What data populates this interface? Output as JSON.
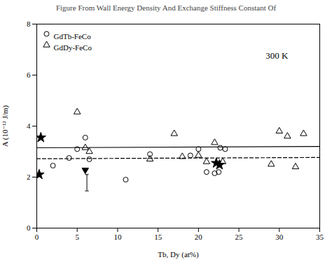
{
  "chart_data": {
    "type": "scatter",
    "title": "Figure From Wall Energy Density And Exchange Stiffness Constant Of",
    "xlabel": "Tb, Dy (at%)",
    "ylabel": "A (10⁻¹² J/m)",
    "xlim": [
      0,
      35
    ],
    "ylim": [
      0,
      8
    ],
    "xticks": [
      0,
      5,
      10,
      15,
      20,
      25,
      30,
      35
    ],
    "yticks": [
      0,
      2,
      4,
      6,
      8
    ],
    "annotation": "300 K",
    "legend": "upper left",
    "grid": false,
    "series": [
      {
        "name": "GdTb-FeCo",
        "type": "scatter",
        "marker": "circle-open",
        "color": "#000000",
        "x": [
          2,
          4,
          5,
          6,
          6.5,
          11,
          14,
          19,
          20,
          21,
          22,
          22.5,
          22.7,
          23.3
        ],
        "values": [
          2.45,
          2.75,
          3.1,
          3.55,
          2.7,
          1.9,
          2.9,
          2.85,
          3.1,
          2.2,
          2.15,
          2.2,
          3.15,
          3.1
        ]
      },
      {
        "name": "GdDy-FeCo",
        "type": "scatter",
        "marker": "triangle-open",
        "color": "#000000",
        "x": [
          5,
          6,
          6.5,
          14,
          17,
          18,
          20,
          21,
          22,
          23,
          29,
          30,
          31,
          32,
          33
        ],
        "values": [
          4.55,
          3.15,
          3.0,
          2.7,
          3.7,
          2.8,
          2.85,
          2.6,
          3.35,
          2.6,
          2.5,
          3.8,
          3.6,
          2.4,
          3.7
        ]
      },
      {
        "type": "scatter",
        "marker": "star",
        "color": "#000000",
        "x": [
          0.3,
          0.5,
          22.2,
          22.6
        ],
        "values": [
          2.1,
          3.55,
          2.55,
          2.48
        ]
      },
      {
        "type": "scatter",
        "marker": "triangle-down",
        "color": "#000000",
        "x": [
          6.0
        ],
        "values": [
          2.28
        ]
      },
      {
        "type": "errorbar",
        "color": "#000000",
        "x": [
          6.2
        ],
        "values": [
          1.78
        ],
        "error": [
          0.32
        ]
      },
      {
        "type": "line",
        "line_style": "solid",
        "color": "#000000",
        "x": [
          0,
          35
        ],
        "values": [
          3.15,
          3.2
        ]
      },
      {
        "type": "line",
        "line_style": "dashed",
        "color": "#000000",
        "x": [
          0,
          35
        ],
        "values": [
          2.72,
          2.77
        ]
      }
    ]
  }
}
